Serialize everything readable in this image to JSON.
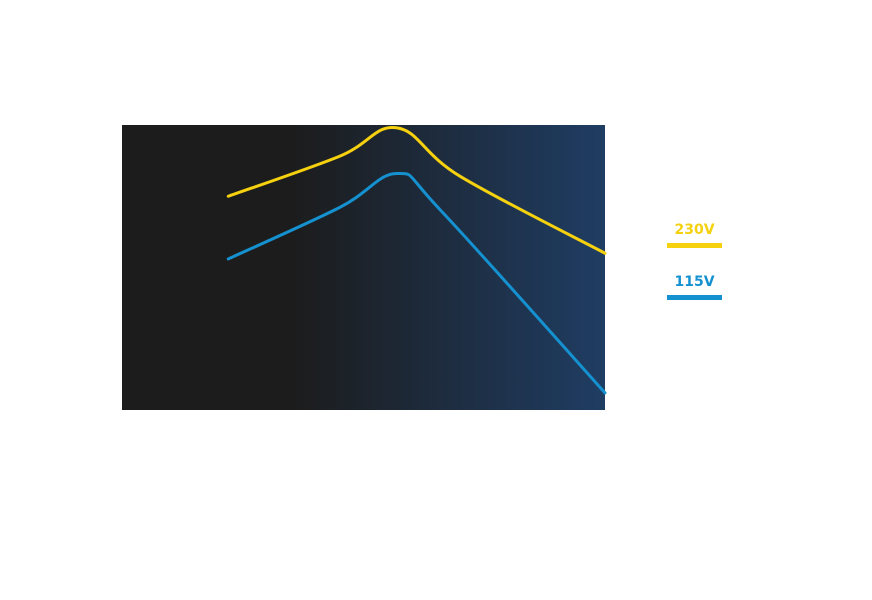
{
  "chart_data": {
    "type": "line",
    "title": "",
    "xlabel": "",
    "ylabel": "",
    "x_range": [
      0,
      100
    ],
    "y_range": [
      0,
      100
    ],
    "grid": false,
    "legend_position": "right",
    "background_gradient": [
      "#1c1c1c",
      "#1f3d63"
    ],
    "series": [
      {
        "name": "230V",
        "color": "#f5d10f",
        "x": [
          22,
          45,
          57,
          70,
          100
        ],
        "y": [
          75,
          89,
          99,
          82,
          55
        ]
      },
      {
        "name": "115V",
        "color": "#1591d0",
        "x": [
          22,
          45,
          57,
          66,
          100
        ],
        "y": [
          53,
          71,
          83,
          70,
          6
        ]
      }
    ]
  }
}
